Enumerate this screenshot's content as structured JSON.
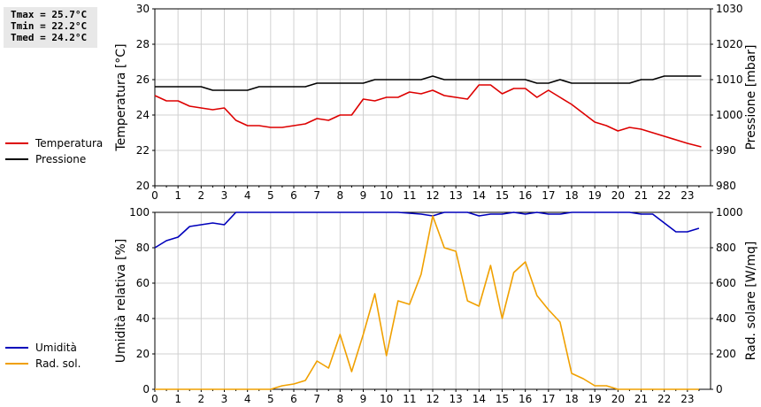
{
  "stats": {
    "tmax": "Tmax = 25.7°C",
    "tmin": "Tmin = 22.2°C",
    "tmed": "Tmed = 24.2°C"
  },
  "chart_data": [
    {
      "type": "line",
      "name": "top",
      "xlabel": "",
      "ylabel_left": "Temperatura [°C]",
      "ylabel_right": "Pressione [mbar]",
      "xlim": [
        0,
        24
      ],
      "ylim_left": [
        20,
        30
      ],
      "ylim_right": [
        980,
        1030
      ],
      "x_ticks": [
        "0",
        "1",
        "2",
        "3",
        "4",
        "5",
        "6",
        "7",
        "8",
        "9",
        "10",
        "11",
        "12",
        "13",
        "14",
        "15",
        "16",
        "17",
        "18",
        "19",
        "20",
        "21",
        "22",
        "23"
      ],
      "y_ticks_left": [
        "20",
        "22",
        "24",
        "26",
        "28",
        "30"
      ],
      "y_ticks_right": [
        "980",
        "990",
        "1000",
        "1010",
        "1020",
        "1030"
      ],
      "grid": true,
      "legend_position": "left",
      "series": [
        {
          "name": "Temperatura",
          "color": "#dd0000",
          "axis": "left",
          "x": [
            0,
            0.5,
            1,
            1.5,
            2,
            2.5,
            3,
            3.5,
            4,
            4.5,
            5,
            5.5,
            6,
            6.5,
            7,
            7.5,
            8,
            8.5,
            9,
            9.5,
            10,
            10.5,
            11,
            11.5,
            12,
            12.5,
            13,
            13.5,
            14,
            14.5,
            15,
            15.5,
            16,
            16.5,
            17,
            17.5,
            18,
            18.5,
            19,
            19.5,
            20,
            20.5,
            21,
            21.5,
            22,
            22.5,
            23,
            23.6
          ],
          "values": [
            25.1,
            24.8,
            24.8,
            24.5,
            24.4,
            24.3,
            24.4,
            23.7,
            23.4,
            23.4,
            23.3,
            23.3,
            23.4,
            23.5,
            23.8,
            23.7,
            24.0,
            24.0,
            24.9,
            24.8,
            25.0,
            25.0,
            25.3,
            25.2,
            25.4,
            25.1,
            25.0,
            24.9,
            25.7,
            25.7,
            25.2,
            25.5,
            25.5,
            25.0,
            25.4,
            25.0,
            24.6,
            24.1,
            23.6,
            23.4,
            23.1,
            23.3,
            23.2,
            23.0,
            22.8,
            22.6,
            22.4,
            22.2
          ]
        },
        {
          "name": "Pressione",
          "color": "#000000",
          "axis": "right",
          "x": [
            0,
            2,
            2.5,
            4,
            4.5,
            6.5,
            7,
            9,
            9.5,
            11.5,
            12,
            12.5,
            16,
            16.5,
            17,
            17.5,
            18,
            20.5,
            21,
            21.5,
            22,
            23.6
          ],
          "values": [
            1008,
            1008,
            1007,
            1007,
            1008,
            1008,
            1009,
            1009,
            1010,
            1010,
            1011,
            1010,
            1010,
            1009,
            1009,
            1010,
            1009,
            1009,
            1010,
            1010,
            1011,
            1011
          ]
        }
      ]
    },
    {
      "type": "line",
      "name": "bottom",
      "xlabel": "",
      "ylabel_left": "Umidità relativa [%]",
      "ylabel_right": "Rad. solare [W/mq]",
      "xlim": [
        0,
        24
      ],
      "ylim_left": [
        0,
        100
      ],
      "ylim_right": [
        0,
        1000
      ],
      "x_ticks": [
        "0",
        "1",
        "2",
        "3",
        "4",
        "5",
        "6",
        "7",
        "8",
        "9",
        "10",
        "11",
        "12",
        "13",
        "14",
        "15",
        "16",
        "17",
        "18",
        "19",
        "20",
        "21",
        "22",
        "23"
      ],
      "y_ticks_left": [
        "0",
        "20",
        "40",
        "60",
        "80",
        "100"
      ],
      "y_ticks_right": [
        "0",
        "200",
        "400",
        "600",
        "800",
        "1000"
      ],
      "grid": true,
      "legend_position": "left",
      "series": [
        {
          "name": "Umidità",
          "color": "#0000bb",
          "axis": "left",
          "x": [
            0,
            0.5,
            1,
            1.5,
            2,
            2.5,
            3,
            3.5,
            4,
            10.5,
            11.5,
            12,
            12.5,
            13,
            13.5,
            14,
            14.5,
            15,
            15.5,
            16,
            16.5,
            17,
            17.5,
            18,
            20.5,
            21,
            21.5,
            22,
            22.5,
            23,
            23.5
          ],
          "values": [
            80,
            84,
            86,
            92,
            93,
            94,
            93,
            100,
            100,
            100,
            99,
            98,
            100,
            100,
            100,
            98,
            99,
            99,
            100,
            99,
            100,
            99,
            99,
            100,
            100,
            99,
            99,
            94,
            89,
            89,
            91
          ]
        },
        {
          "name": "Rad. sol.",
          "color": "#f0a000",
          "axis": "right",
          "x": [
            0,
            5,
            5.5,
            6,
            6.5,
            7,
            7.5,
            8,
            8.5,
            9,
            9.5,
            10,
            10.5,
            11,
            11.5,
            12,
            12.5,
            13,
            13.5,
            14,
            14.5,
            15,
            15.5,
            16,
            16.5,
            17,
            17.5,
            18,
            18.5,
            19,
            19.5,
            20,
            23.5
          ],
          "values": [
            0,
            0,
            20,
            30,
            50,
            160,
            120,
            310,
            100,
            310,
            540,
            190,
            500,
            480,
            650,
            980,
            800,
            780,
            500,
            470,
            700,
            400,
            660,
            720,
            530,
            450,
            380,
            90,
            60,
            20,
            20,
            0,
            0
          ]
        }
      ]
    }
  ]
}
